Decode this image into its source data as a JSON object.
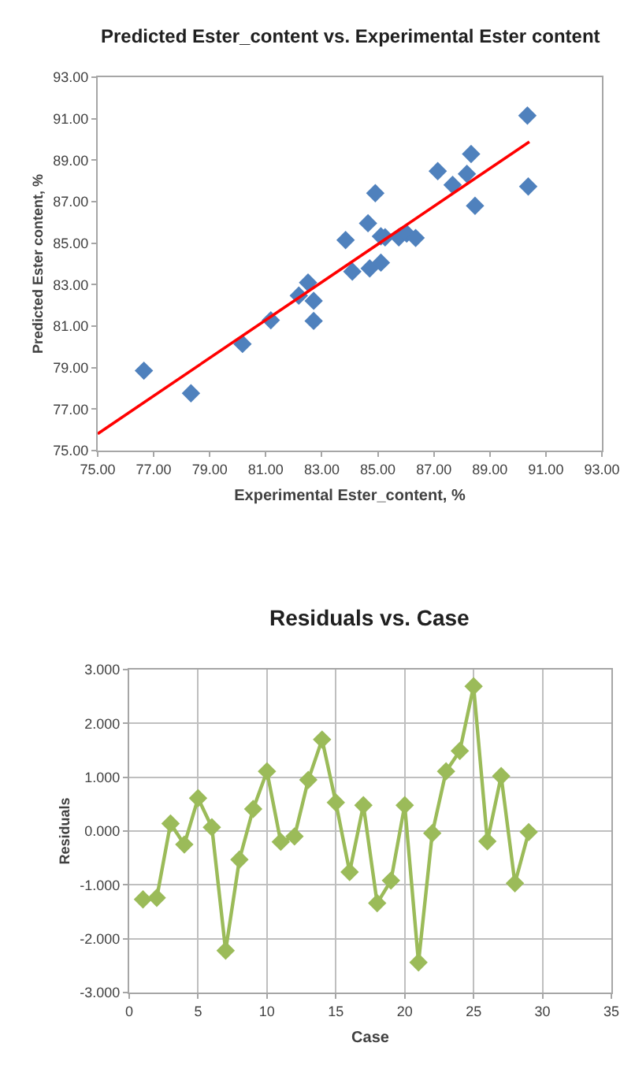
{
  "chart_data": [
    {
      "type": "scatter",
      "title": "Predicted Ester_content vs. Experimental Ester content",
      "xlabel": "Experimental Ester_content, %",
      "ylabel": "Predicted Ester content, %",
      "xlim": [
        75,
        93
      ],
      "xticks": [
        {
          "value": 75,
          "label": "75.00"
        },
        {
          "value": 77,
          "label": "77.00"
        },
        {
          "value": 79,
          "label": "79.00"
        },
        {
          "value": 81,
          "label": "81.00"
        },
        {
          "value": 83,
          "label": "83.00"
        },
        {
          "value": 85,
          "label": "85.00"
        },
        {
          "value": 87,
          "label": "87.00"
        },
        {
          "value": 89,
          "label": "89.00"
        },
        {
          "value": 91,
          "label": "91.00"
        },
        {
          "value": 93,
          "label": "93.00"
        }
      ],
      "ylim": [
        75,
        93
      ],
      "yticks": [
        {
          "value": 75,
          "label": "75.00"
        },
        {
          "value": 77,
          "label": "77.00"
        },
        {
          "value": 79,
          "label": "79.00"
        },
        {
          "value": 81,
          "label": "81.00"
        },
        {
          "value": 83,
          "label": "83.00"
        },
        {
          "value": 85,
          "label": "85.00"
        },
        {
          "value": 87,
          "label": "87.00"
        },
        {
          "value": 89,
          "label": "89.00"
        },
        {
          "value": 91,
          "label": "91.00"
        },
        {
          "value": 93,
          "label": "93.00"
        }
      ],
      "grid": false,
      "marker": "diamond",
      "series": [
        {
          "type": "scatter",
          "color": "#4f81bd",
          "x": [
            76.65,
            78.33,
            80.17,
            81.18,
            82.18,
            82.51,
            82.71,
            82.71,
            83.85,
            84.09,
            84.65,
            84.71,
            84.91,
            85.11,
            85.11,
            85.26,
            85.75,
            86.03,
            86.35,
            87.14,
            87.67,
            88.18,
            88.33,
            88.47,
            90.34,
            90.37
          ],
          "values": [
            78.85,
            77.76,
            80.14,
            81.28,
            82.47,
            83.1,
            82.22,
            81.25,
            85.15,
            83.63,
            85.96,
            83.78,
            87.41,
            84.06,
            85.33,
            85.28,
            85.28,
            85.46,
            85.25,
            88.47,
            87.81,
            88.34,
            89.3,
            86.8,
            91.15,
            87.73
          ]
        },
        {
          "type": "line",
          "color": "#ff0000",
          "marker": "none",
          "line_style": "solid",
          "x": [
            75,
            90.41
          ],
          "values": [
            75.81,
            89.89
          ]
        }
      ]
    },
    {
      "type": "line",
      "title": "Residuals vs. Case",
      "xlabel": "Case",
      "ylabel": "Residuals",
      "xlim": [
        0,
        35
      ],
      "xticks": [
        0,
        5,
        10,
        15,
        20,
        25,
        30,
        35
      ],
      "ylim": [
        -3,
        3
      ],
      "yticks": [
        {
          "value": -3,
          "label": "-3.000"
        },
        {
          "value": -2,
          "label": "-2.000"
        },
        {
          "value": -1,
          "label": "-1.000"
        },
        {
          "value": 0,
          "label": "0.000"
        },
        {
          "value": 1,
          "label": "1.000"
        },
        {
          "value": 2,
          "label": "2.000"
        },
        {
          "value": 3,
          "label": "3.000"
        }
      ],
      "grid": true,
      "marker": "diamond",
      "line_style": "solid",
      "series": [
        {
          "color": "#9bbb59",
          "x": [
            1,
            2,
            3,
            4,
            5,
            6,
            7,
            8,
            9,
            10,
            11,
            12,
            13,
            14,
            15,
            16,
            17,
            18,
            19,
            20,
            21,
            22,
            23,
            24,
            25,
            26,
            27,
            28,
            29
          ],
          "values": [
            -1.27,
            -1.24,
            0.14,
            -0.25,
            0.61,
            0.07,
            -2.22,
            -0.53,
            0.41,
            1.11,
            -0.2,
            -0.1,
            0.95,
            1.7,
            0.53,
            -0.76,
            0.48,
            -1.34,
            -0.92,
            0.48,
            -2.44,
            -0.04,
            1.11,
            1.49,
            2.69,
            -0.19,
            1.02,
            -0.97,
            -0.02
          ]
        }
      ]
    }
  ]
}
